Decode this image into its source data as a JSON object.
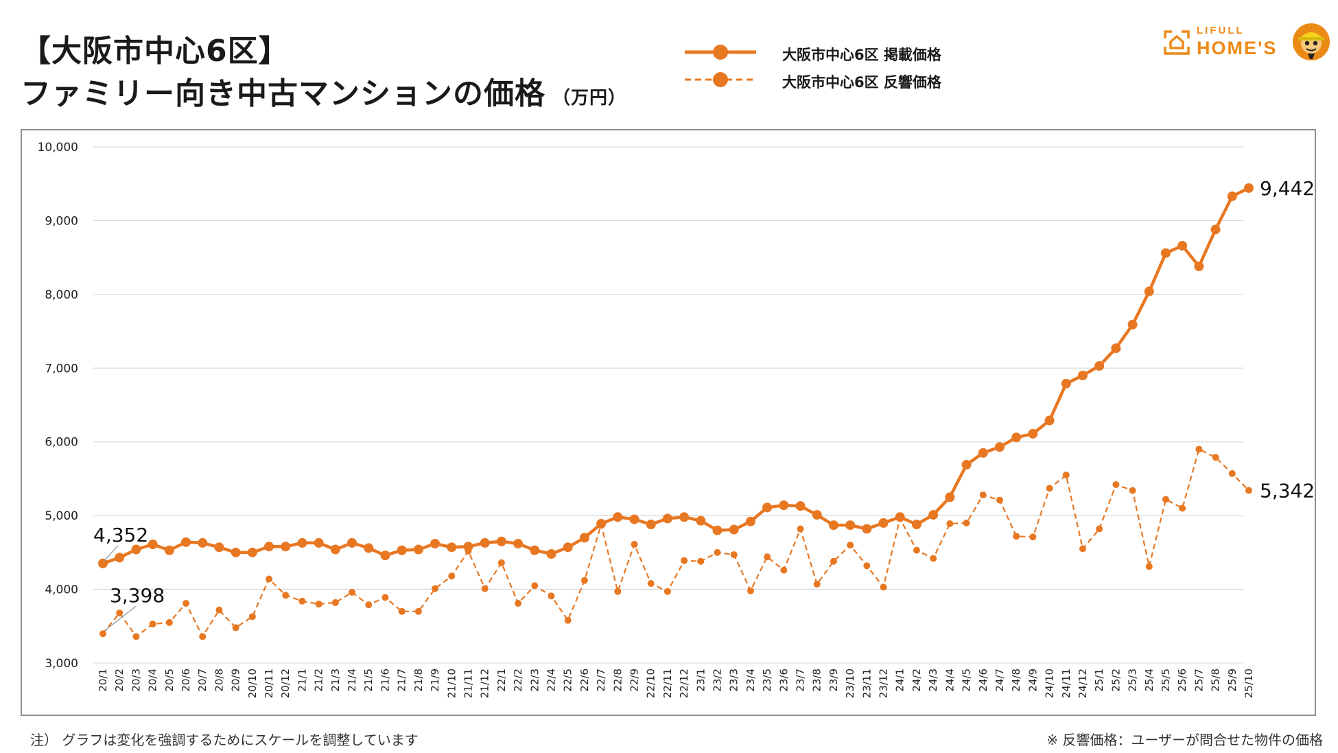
{
  "header": {
    "title_line1": "【大阪市中心6区】",
    "title_line2": "ファミリー向き中古マンションの価格",
    "title_unit": "（万円）"
  },
  "legend": {
    "items": [
      {
        "label": "大阪市中心6区 掲載価格",
        "style": "solid"
      },
      {
        "label": "大阪市中心6区 反響価格",
        "style": "dashed"
      }
    ]
  },
  "logo": {
    "top_text": "LIFULL",
    "main_text": "HOME'S"
  },
  "footnotes": {
    "left": "注）  グラフは変化を強調するためにスケールを調整しています",
    "right": "※ 反響価格：ユーザーが問合せた物件の価格"
  },
  "colors": {
    "accent": "#e87722",
    "grid": "#d9d9d9",
    "frame": "#8f8f8f"
  },
  "chart_data": {
    "type": "line",
    "ylim": [
      3000,
      10000
    ],
    "yticks": [
      3000,
      4000,
      5000,
      6000,
      7000,
      8000,
      9000,
      10000
    ],
    "ytick_labels": [
      "3,000",
      "4,000",
      "5,000",
      "6,000",
      "7,000",
      "8,000",
      "9,000",
      "10,000"
    ],
    "grid": true,
    "legend_position": "top-right",
    "categories": [
      "20/1",
      "20/2",
      "20/3",
      "20/4",
      "20/5",
      "20/6",
      "20/7",
      "20/8",
      "20/9",
      "20/10",
      "20/11",
      "20/12",
      "21/1",
      "21/2",
      "21/3",
      "21/4",
      "21/5",
      "21/6",
      "21/7",
      "21/8",
      "21/9",
      "21/10",
      "21/11",
      "21/12",
      "22/1",
      "22/2",
      "22/3",
      "22/4",
      "22/5",
      "22/6",
      "22/7",
      "22/8",
      "22/9",
      "22/10",
      "22/11",
      "22/12",
      "23/1",
      "23/2",
      "23/3",
      "23/4",
      "23/5",
      "23/6",
      "23/7",
      "23/8",
      "23/9",
      "23/10",
      "23/11",
      "23/12",
      "24/1",
      "24/2",
      "24/3",
      "24/4",
      "24/5",
      "24/6",
      "24/7",
      "24/8",
      "24/9",
      "24/10",
      "24/11",
      "24/12",
      "25/1",
      "25/2",
      "25/3",
      "25/4",
      "25/5",
      "25/6",
      "25/7",
      "25/8",
      "25/9",
      "25/10"
    ],
    "series": [
      {
        "name": "大阪市中心6区 掲載価格",
        "style": "solid",
        "values": [
          4352,
          4430,
          4540,
          4610,
          4530,
          4640,
          4630,
          4570,
          4500,
          4500,
          4580,
          4580,
          4630,
          4630,
          4540,
          4630,
          4560,
          4460,
          4530,
          4540,
          4620,
          4570,
          4580,
          4630,
          4650,
          4620,
          4530,
          4480,
          4570,
          4700,
          4890,
          4980,
          4950,
          4880,
          4960,
          4980,
          4930,
          4800,
          4810,
          4920,
          5110,
          5140,
          5130,
          5010,
          4870,
          4870,
          4820,
          4900,
          4980,
          4880,
          5010,
          5250,
          5690,
          5850,
          5930,
          6060,
          6110,
          6290,
          6790,
          6900,
          7030,
          7270,
          7590,
          8040,
          8560,
          8660,
          8380,
          8880,
          9330,
          9442
        ],
        "end_label": "9,442",
        "start_label": "4,352"
      },
      {
        "name": "大阪市中心6区 反響価格",
        "style": "dashed",
        "values": [
          3398,
          3680,
          3360,
          3530,
          3550,
          3810,
          3360,
          3720,
          3480,
          3630,
          4140,
          3920,
          3840,
          3800,
          3820,
          3960,
          3790,
          3890,
          3700,
          3700,
          4010,
          4180,
          4520,
          4010,
          4360,
          3810,
          4050,
          3910,
          3580,
          4120,
          4880,
          3970,
          4610,
          4080,
          3970,
          4390,
          4380,
          4500,
          4470,
          3980,
          4440,
          4260,
          4820,
          4070,
          4380,
          4600,
          4320,
          4030,
          4960,
          4530,
          4420,
          4890,
          4900,
          5280,
          5210,
          4720,
          4710,
          5370,
          5550,
          4550,
          4820,
          5420,
          5340,
          4310,
          5220,
          5100,
          5900,
          5790,
          5570,
          5342
        ],
        "end_label": "5,342",
        "start_label": "3,398"
      }
    ]
  }
}
